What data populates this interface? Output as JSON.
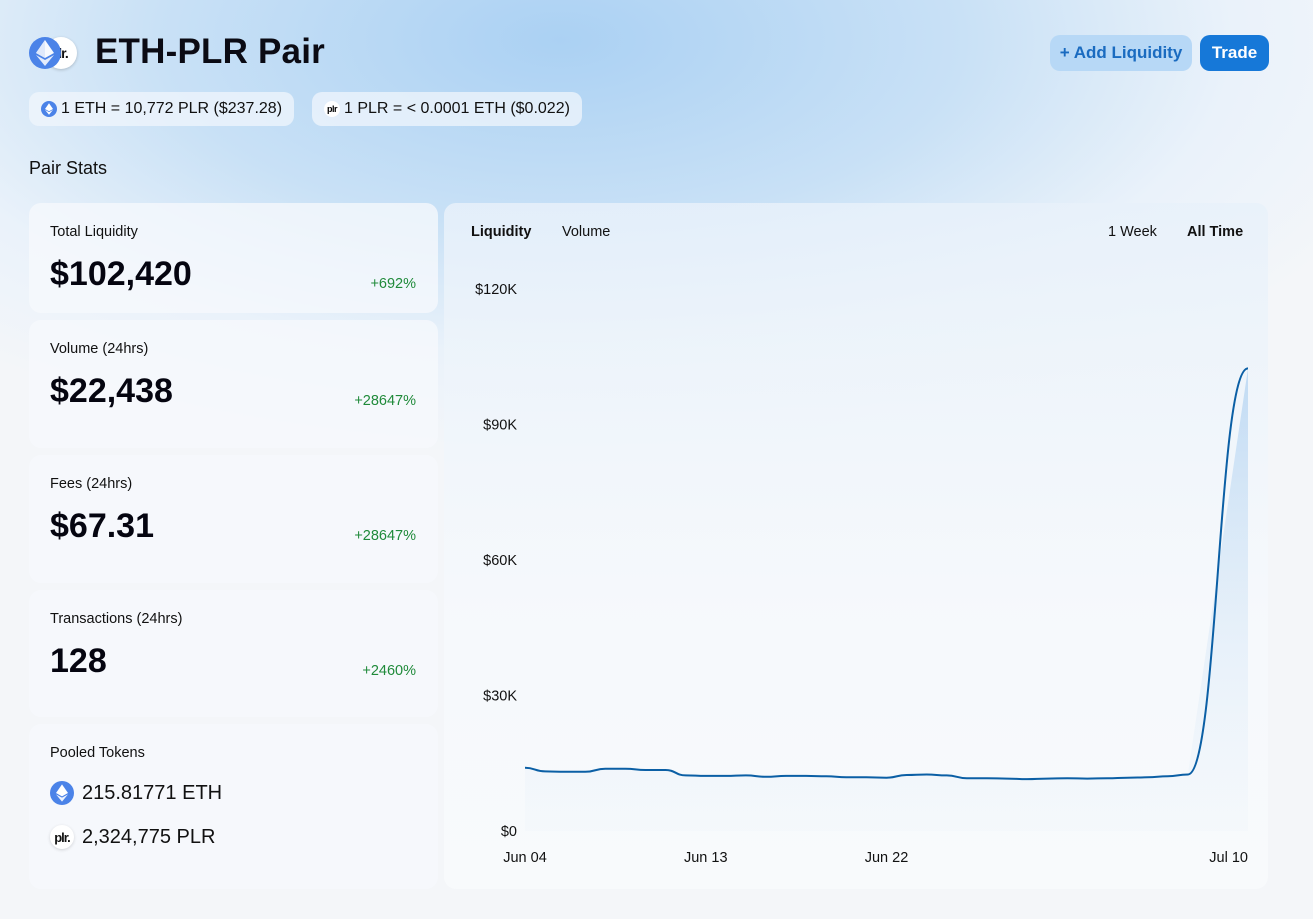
{
  "header": {
    "title": "ETH-PLR Pair",
    "token_a_icon": "eth-icon",
    "token_b_icon": "plr-icon",
    "token_b_logo_text": "lr.",
    "add_liquidity_label": "+ Add Liquidity",
    "trade_label": "Trade"
  },
  "prices": {
    "eth_to_plr": "1 ETH = 10,772 PLR ($237.28)",
    "plr_to_eth": "1 PLR = < 0.0001 ETH ($0.022)",
    "plr_mini_text": "plr"
  },
  "section_title": "Pair Stats",
  "stats": {
    "liquidity": {
      "label": "Total Liquidity",
      "value": "$102,420",
      "change": "+692%"
    },
    "volume": {
      "label": "Volume (24hrs)",
      "value": "$22,438",
      "change": "+28647%"
    },
    "fees": {
      "label": "Fees (24hrs)",
      "value": "$67.31",
      "change": "+28647%"
    },
    "transactions": {
      "label": "Transactions (24hrs)",
      "value": "128",
      "change": "+2460%"
    }
  },
  "pooled": {
    "label": "Pooled Tokens",
    "eth_amount": "215.81771 ETH",
    "plr_amount": "2,324,775 PLR",
    "plr_logo_text": "plr."
  },
  "chart_tabs": {
    "liquidity": "Liquidity",
    "volume": "Volume",
    "week": "1 Week",
    "all_time": "All Time"
  },
  "colors": {
    "accent": "#1678d8",
    "positive": "#1f8a3a",
    "line": "#0b5fa5"
  },
  "chart_data": {
    "type": "area",
    "series": [
      {
        "values": [
          14000,
          13200,
          13100,
          13100,
          13800,
          13800,
          13500,
          13500,
          12300,
          12200,
          12200,
          12300,
          12000,
          12200,
          12200,
          12100,
          11900,
          11900,
          11800,
          12400,
          12500,
          12300,
          11700,
          11700,
          11600,
          11500,
          11600,
          11700,
          11600,
          11700,
          11800,
          11900,
          12100,
          12500,
          102420
        ]
      }
    ],
    "x": [
      "Jun 04",
      "Jun 05",
      "Jun 06",
      "Jun 07",
      "Jun 08",
      "Jun 09",
      "Jun 10",
      "Jun 11",
      "Jun 12",
      "Jun 13",
      "Jun 14",
      "Jun 15",
      "Jun 16",
      "Jun 17",
      "Jun 18",
      "Jun 19",
      "Jun 20",
      "Jun 21",
      "Jun 22",
      "Jun 23",
      "Jun 24",
      "Jun 25",
      "Jun 26",
      "Jun 27",
      "Jun 28",
      "Jun 29",
      "Jun 30",
      "Jul 01",
      "Jul 02",
      "Jul 03",
      "Jul 04",
      "Jul 05",
      "Jul 06",
      "Jul 07",
      "Jul 10"
    ],
    "x_ticks": [
      "Jun 04",
      "Jun 13",
      "Jun 22",
      "Jul 10"
    ],
    "y_ticks": [
      "$0",
      "$30K",
      "$60K",
      "$90K",
      "$120K"
    ],
    "y_tick_values": [
      0,
      30000,
      60000,
      90000,
      120000
    ],
    "ylim": [
      0,
      120000
    ],
    "grid": false
  }
}
